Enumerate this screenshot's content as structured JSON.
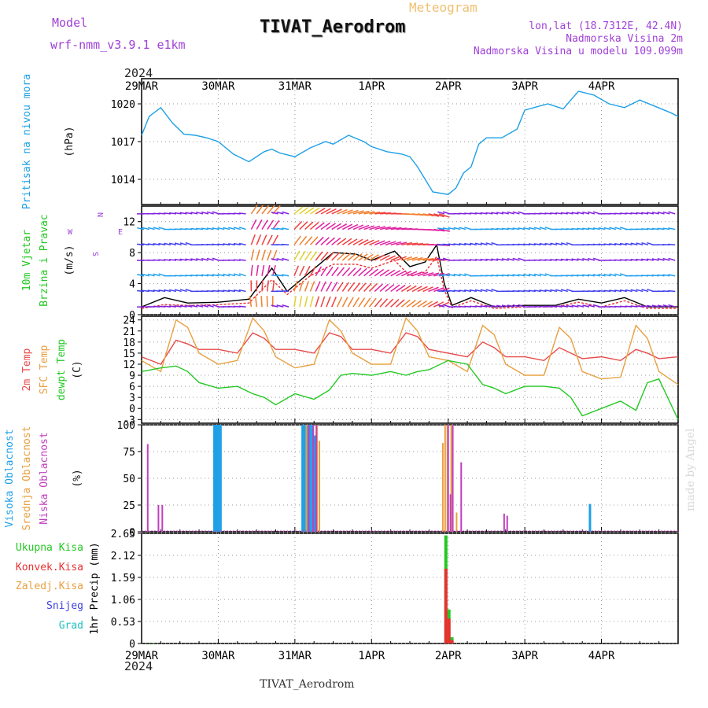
{
  "header": {
    "model_label": "Model",
    "model_name": "wrf-nmm_v3.9.1  e1km",
    "meteogram": "Meteogram",
    "title": "TIVAT_Aerodrom",
    "lonlat": "lon,lat (18.7312E, 42.4N)",
    "elev": "Nadmorska Visina 2m",
    "elev_model": "Nadmorska Visina u modelu 109.099m",
    "year": "2024",
    "footer": "TIVAT_Aerodrom",
    "watermark": "made by Angel"
  },
  "colors": {
    "pressure": "#1ea0e6",
    "temp2m": "#e84a4a",
    "sfc": "#e8a040",
    "dew": "#22c822",
    "high": "#1ea0e6",
    "mid": "#e8a040",
    "low": "#c040c0",
    "precip": "#22c822",
    "conv": "#e83030",
    "snow": "#4040e0",
    "grad": "#20c0c0"
  },
  "chart_data": [
    {
      "type": "line",
      "panel": "pressure",
      "ylabel_lines": [
        "Pritisak na nivou mora",
        "(hPa)"
      ],
      "yticks": [
        1014,
        1017,
        1020
      ],
      "ylim": [
        1012,
        1022
      ],
      "xticks": [
        "29MAR",
        "30MAR",
        "31MAR",
        "1APR",
        "2APR",
        "3APR",
        "4APR"
      ],
      "x_days": [
        0,
        0.1,
        0.25,
        0.4,
        0.55,
        0.7,
        0.85,
        1.0,
        1.2,
        1.4,
        1.6,
        1.7,
        1.8,
        2.0,
        2.2,
        2.4,
        2.5,
        2.7,
        2.9,
        3.0,
        3.2,
        3.4,
        3.5,
        3.6,
        3.8,
        4.0,
        4.1,
        4.2,
        4.3,
        4.4,
        4.5,
        4.7,
        4.9,
        5.0,
        5.3,
        5.5,
        5.7,
        5.9,
        6.1,
        6.3,
        6.5,
        6.7,
        6.9,
        7.0
      ],
      "series": [
        {
          "values": [
            1017.5,
            1019.0,
            1019.7,
            1018.5,
            1017.6,
            1017.5,
            1017.3,
            1017.0,
            1016.0,
            1015.4,
            1016.2,
            1016.4,
            1016.1,
            1015.8,
            1016.5,
            1017.0,
            1016.8,
            1017.5,
            1017.0,
            1016.6,
            1016.2,
            1016.0,
            1015.8,
            1015.0,
            1013.0,
            1012.8,
            1013.3,
            1014.5,
            1015.0,
            1016.8,
            1017.3,
            1017.3,
            1018.0,
            1019.5,
            1020.0,
            1019.6,
            1021.0,
            1020.7,
            1020.0,
            1019.7,
            1020.3,
            1019.8,
            1019.3,
            1019.0
          ]
        }
      ]
    },
    {
      "type": "line",
      "panel": "wind",
      "ylabel_lines": [
        "10m Vjetar",
        "Brzina i Pravac",
        "(m/s)"
      ],
      "compass": [
        "N",
        "W",
        "E",
        "S"
      ],
      "yticks": [
        0,
        4,
        8,
        12
      ],
      "ylim": [
        0,
        14
      ],
      "x_days": [
        0,
        0.3,
        0.6,
        1.0,
        1.4,
        1.7,
        1.9,
        2.2,
        2.5,
        2.8,
        3.0,
        3.3,
        3.5,
        3.7,
        3.85,
        3.95,
        4.05,
        4.3,
        4.6,
        5.0,
        5.4,
        5.7,
        6.0,
        6.3,
        6.6,
        7.0
      ],
      "series": [
        {
          "name": "speed",
          "values": [
            1.0,
            2.2,
            1.5,
            1.6,
            2.0,
            6.0,
            3.0,
            5.5,
            8.0,
            7.8,
            7.0,
            8.2,
            6.2,
            6.8,
            9.0,
            4.0,
            1.2,
            2.2,
            1.0,
            1.2,
            1.2,
            2.0,
            1.5,
            2.2,
            1.0,
            1.0
          ]
        },
        {
          "name": "gust",
          "values": [
            0.8,
            1.3,
            1.2,
            1.3,
            1.5,
            4.5,
            2.6,
            5.0,
            6.5,
            6.5,
            6.0,
            7.0,
            5.0,
            5.5,
            7.5,
            3.2,
            0.9,
            1.8,
            0.8,
            1.0,
            1.0,
            1.6,
            1.0,
            1.8,
            0.8,
            0.8
          ]
        }
      ]
    },
    {
      "type": "line",
      "panel": "temperature",
      "ylabel_lines": [
        "2m Temp",
        "SFC Temp",
        "dewpt Temp",
        "(C)"
      ],
      "yticks": [
        -3,
        0,
        3,
        6,
        9,
        12,
        15,
        18,
        21,
        24
      ],
      "ylim": [
        -4,
        25
      ],
      "x_days": [
        0,
        0.25,
        0.45,
        0.6,
        0.75,
        1.0,
        1.25,
        1.45,
        1.6,
        1.75,
        2.0,
        2.25,
        2.45,
        2.6,
        2.75,
        3.0,
        3.25,
        3.45,
        3.6,
        3.75,
        4.0,
        4.25,
        4.45,
        4.6,
        4.75,
        5.0,
        5.25,
        5.45,
        5.6,
        5.75,
        6.0,
        6.25,
        6.45,
        6.6,
        6.75,
        7.0
      ],
      "series": [
        {
          "name": "2m Temp",
          "values": [
            14,
            12,
            18.5,
            17.5,
            16,
            16,
            15,
            20.5,
            19,
            16,
            16,
            15,
            20.5,
            19.5,
            16,
            16,
            15,
            20.5,
            19.5,
            16,
            15,
            14,
            18,
            16.5,
            14,
            14,
            13,
            16.5,
            15,
            13.5,
            14,
            13,
            16,
            15,
            13.5,
            14
          ]
        },
        {
          "name": "SFC Temp",
          "values": [
            13,
            10,
            24,
            22,
            15,
            12,
            13,
            24.5,
            21,
            14,
            11,
            12,
            24,
            21,
            15,
            12,
            12,
            24.5,
            21,
            14,
            13,
            10,
            22.5,
            20,
            12,
            9,
            9,
            22,
            19,
            10,
            8,
            8.5,
            22.5,
            19,
            10,
            6.5
          ]
        },
        {
          "name": "dewpt Temp",
          "values": [
            10,
            11,
            11.5,
            10,
            7,
            5.5,
            6,
            4,
            3,
            1,
            4,
            2.5,
            5,
            9,
            9.5,
            9,
            10,
            9,
            10,
            10.5,
            13,
            12,
            6.5,
            5.5,
            4,
            6,
            6,
            5.5,
            3,
            -2,
            0,
            2,
            -0.5,
            7,
            8,
            -3
          ]
        }
      ]
    },
    {
      "type": "bar",
      "panel": "clouds",
      "ylabel_lines": [
        "Visoka Oblacnost",
        "Srednja Oblacnost",
        "Niska Oblacnost",
        "(%)"
      ],
      "yticks": [
        0,
        25,
        50,
        75,
        100
      ],
      "ylim": [
        0,
        100
      ],
      "series": [
        {
          "name": "Visoka Oblacnost",
          "x_days": [
            0.95,
            0.98,
            1.0,
            1.03,
            2.1,
            2.13,
            2.16,
            2.2,
            2.23,
            2.26,
            5.85
          ],
          "values": [
            100,
            100,
            100,
            100,
            100,
            100,
            100,
            100,
            100,
            90,
            26
          ]
        },
        {
          "name": "Srednja Oblacnost",
          "x_days": [
            2.15,
            2.29,
            2.32,
            3.93,
            3.96,
            3.99,
            4.04,
            4.11
          ],
          "values": [
            100,
            100,
            85,
            83,
            100,
            100,
            100,
            18
          ]
        },
        {
          "name": "Niska Oblacnost",
          "x_days": [
            0.08,
            0.22,
            0.27,
            2.18,
            2.24,
            2.28,
            4.0,
            4.03,
            4.06,
            4.17,
            4.73,
            4.77
          ],
          "values": [
            82,
            25,
            25,
            100,
            100,
            100,
            100,
            35,
            100,
            65,
            17,
            15
          ]
        }
      ]
    },
    {
      "type": "bar",
      "panel": "precip",
      "ylabel_lines": [
        "Ukupna Kisa",
        "Konvek.Kisa",
        "Zaledj.Kisa",
        "Snijeg",
        "Grad",
        "1hr Precip (mm)"
      ],
      "yticks": [
        0,
        0.53,
        1.06,
        1.59,
        2.12,
        2.65
      ],
      "ylim": [
        0,
        2.65
      ],
      "series": [
        {
          "name": "Ukupna Kisa",
          "x_days": [
            0.15,
            3.97,
            4.01,
            4.05
          ],
          "values": [
            0.01,
            2.6,
            0.82,
            0.15
          ]
        },
        {
          "name": "Konvek.Kisa",
          "x_days": [
            3.97,
            4.01,
            4.05
          ],
          "values": [
            1.8,
            0.6,
            0.08
          ]
        }
      ]
    }
  ]
}
